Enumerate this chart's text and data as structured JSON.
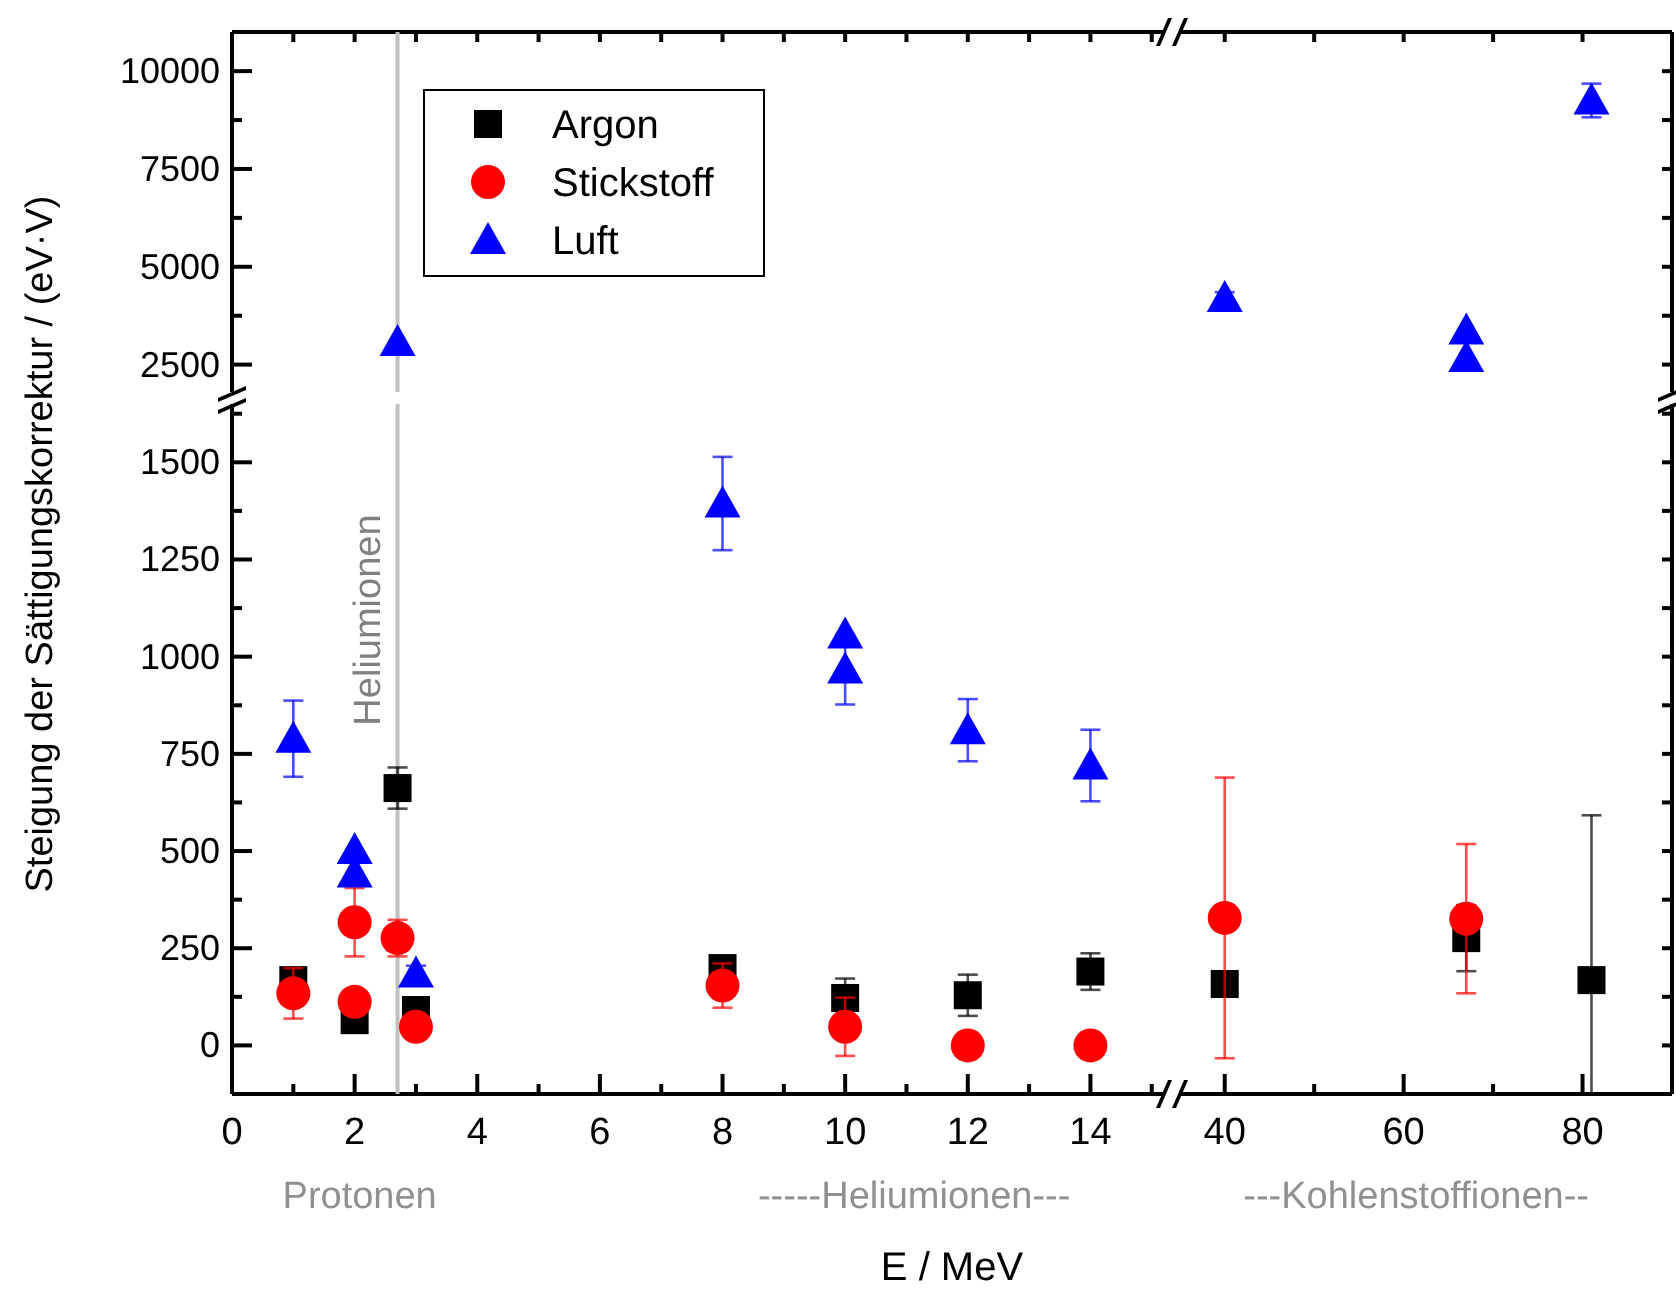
{
  "chart_data": [
    {
      "type": "scatter",
      "xlim": [
        0,
        15.2
      ],
      "ylim": [
        1800,
        11000
      ],
      "tick_labels": "y",
      "xticks": [
        {
          "value": 0,
          "label": null
        },
        {
          "value": 1,
          "label": null
        },
        {
          "value": 2,
          "label": null
        },
        {
          "value": 3,
          "label": null
        },
        {
          "value": 4,
          "label": null
        },
        {
          "value": 5,
          "label": null
        },
        {
          "value": 6,
          "label": null
        },
        {
          "value": 7,
          "label": null
        },
        {
          "value": 8,
          "label": null
        },
        {
          "value": 9,
          "label": null
        },
        {
          "value": 10,
          "label": null
        },
        {
          "value": 11,
          "label": null
        },
        {
          "value": 12,
          "label": null
        },
        {
          "value": 13,
          "label": null
        },
        {
          "value": 14,
          "label": null
        },
        {
          "value": 15,
          "label": null
        }
      ],
      "yticks": [
        2500,
        {
          "value": 3750,
          "label": null
        },
        5000,
        {
          "value": 6250,
          "label": null
        },
        7500,
        {
          "value": 8750,
          "label": null
        },
        10000
      ],
      "series": [
        {
          "color": "#0000ff",
          "marker": "triangle",
          "x": [
            2.7
          ],
          "values": [
            3080
          ]
        }
      ],
      "ref_lines": [
        {
          "axis": "x",
          "value": 2.7,
          "color": "#c0c0c0"
        }
      ]
    },
    {
      "type": "scatter",
      "xlim": [
        35,
        90
      ],
      "ylim": [
        1800,
        11000
      ],
      "tick_labels": false,
      "xticks": [
        {
          "value": 40,
          "label": null
        },
        {
          "value": 50,
          "label": null
        },
        {
          "value": 60,
          "label": null
        },
        {
          "value": 70,
          "label": null
        },
        {
          "value": 80,
          "label": null
        }
      ],
      "yticks": [
        {
          "value": 2500,
          "label": null
        },
        {
          "value": 3750,
          "label": null
        },
        {
          "value": 5000,
          "label": null
        },
        {
          "value": 6250,
          "label": null
        },
        {
          "value": 7500,
          "label": null
        },
        {
          "value": 8750,
          "label": null
        },
        {
          "value": 10000,
          "label": null
        }
      ],
      "series": [
        {
          "color": "#0000ff",
          "marker": "triangle",
          "x": [
            40,
            67,
            67,
            81
          ],
          "values": [
            4200,
            3370,
            2670,
            9250
          ],
          "errors": [
            150,
            null,
            null,
            430
          ]
        }
      ]
    },
    {
      "type": "scatter",
      "xlim": [
        0,
        15.2
      ],
      "ylim": [
        -125,
        1650
      ],
      "xlabel": "E / MeV",
      "ylabel": "Steigung der Sättigungskorrektur / (eV·V)",
      "legend": "top left",
      "xticks": [
        0,
        {
          "value": 1,
          "label": null
        },
        2,
        {
          "value": 3,
          "label": null
        },
        4,
        {
          "value": 5,
          "label": null
        },
        6,
        {
          "value": 7,
          "label": null
        },
        8,
        {
          "value": 9,
          "label": null
        },
        10,
        {
          "value": 11,
          "label": null
        },
        12,
        {
          "value": 13,
          "label": null
        },
        14,
        {
          "value": 15,
          "label": null
        }
      ],
      "yticks": [
        0,
        {
          "value": 125,
          "label": null
        },
        250,
        {
          "value": 375,
          "label": null
        },
        500,
        {
          "value": 625,
          "label": null
        },
        750,
        {
          "value": 875,
          "label": null
        },
        1000,
        {
          "value": 1125,
          "label": null
        },
        1250,
        {
          "value": 1375,
          "label": null
        },
        1500,
        {
          "value": 1625,
          "label": null
        }
      ],
      "series": [
        {
          "name": "Argon",
          "color": "#000000",
          "marker": "square",
          "x": [
            1,
            2,
            2.7,
            3,
            8,
            10,
            12,
            14
          ],
          "values": [
            168,
            65,
            662,
            91,
            199,
            122,
            129,
            190
          ],
          "errors": [
            25,
            null,
            53,
            null,
            20,
            50,
            53,
            47
          ]
        },
        {
          "name": "Stickstoff",
          "color": "#ff0000",
          "marker": "circle",
          "x": [
            1,
            2,
            2,
            2.7,
            3,
            8,
            10,
            12,
            14
          ],
          "values": [
            134,
            317,
            112,
            276,
            48,
            154,
            48,
            0,
            0
          ],
          "errors": [
            65,
            88,
            null,
            47,
            null,
            57,
            75,
            null,
            null
          ]
        },
        {
          "name": "Luft",
          "color": "#0000ff",
          "marker": "triangle",
          "x": [
            1,
            2,
            2,
            3,
            8,
            10,
            10,
            12,
            14
          ],
          "values": [
            789,
            503,
            442,
            185,
            1394,
            1057,
            967,
            811,
            720
          ],
          "errors": [
            98,
            null,
            null,
            20,
            120,
            null,
            90,
            80,
            92
          ]
        }
      ],
      "ref_lines": [
        {
          "axis": "x",
          "value": 2.7,
          "label": "Heliumionen",
          "color": "#c0c0c0"
        }
      ],
      "annotations": [
        "Protonen",
        "-----Heliumionen---"
      ]
    },
    {
      "type": "scatter",
      "xlim": [
        35,
        90
      ],
      "ylim": [
        -125,
        1650
      ],
      "tick_labels": "x",
      "xticks": [
        40,
        {
          "value": 50,
          "label": null
        },
        60,
        {
          "value": 70,
          "label": null
        },
        80
      ],
      "yticks": [
        {
          "value": 0,
          "label": null
        },
        {
          "value": 125,
          "label": null
        },
        {
          "value": 250,
          "label": null
        },
        {
          "value": 375,
          "label": null
        },
        {
          "value": 500,
          "label": null
        },
        {
          "value": 625,
          "label": null
        },
        {
          "value": 750,
          "label": null
        },
        {
          "value": 875,
          "label": null
        },
        {
          "value": 1000,
          "label": null
        },
        {
          "value": 1125,
          "label": null
        },
        {
          "value": 1250,
          "label": null
        },
        {
          "value": 1375,
          "label": null
        },
        {
          "value": 1500,
          "label": null
        },
        {
          "value": 1625,
          "label": null
        }
      ],
      "series": [
        {
          "color": "#000000",
          "marker": "square",
          "x": [
            40,
            67,
            81
          ],
          "values": [
            158,
            276,
            168
          ],
          "errors": [
            null,
            85,
            [
              -125,
              592
            ]
          ]
        },
        {
          "color": "#ff0000",
          "marker": "circle",
          "x": [
            40,
            67
          ],
          "values": [
            328,
            326
          ],
          "errors": [
            361,
            192
          ]
        }
      ],
      "annotations": [
        "---Kohlenstoffionen--"
      ]
    }
  ]
}
